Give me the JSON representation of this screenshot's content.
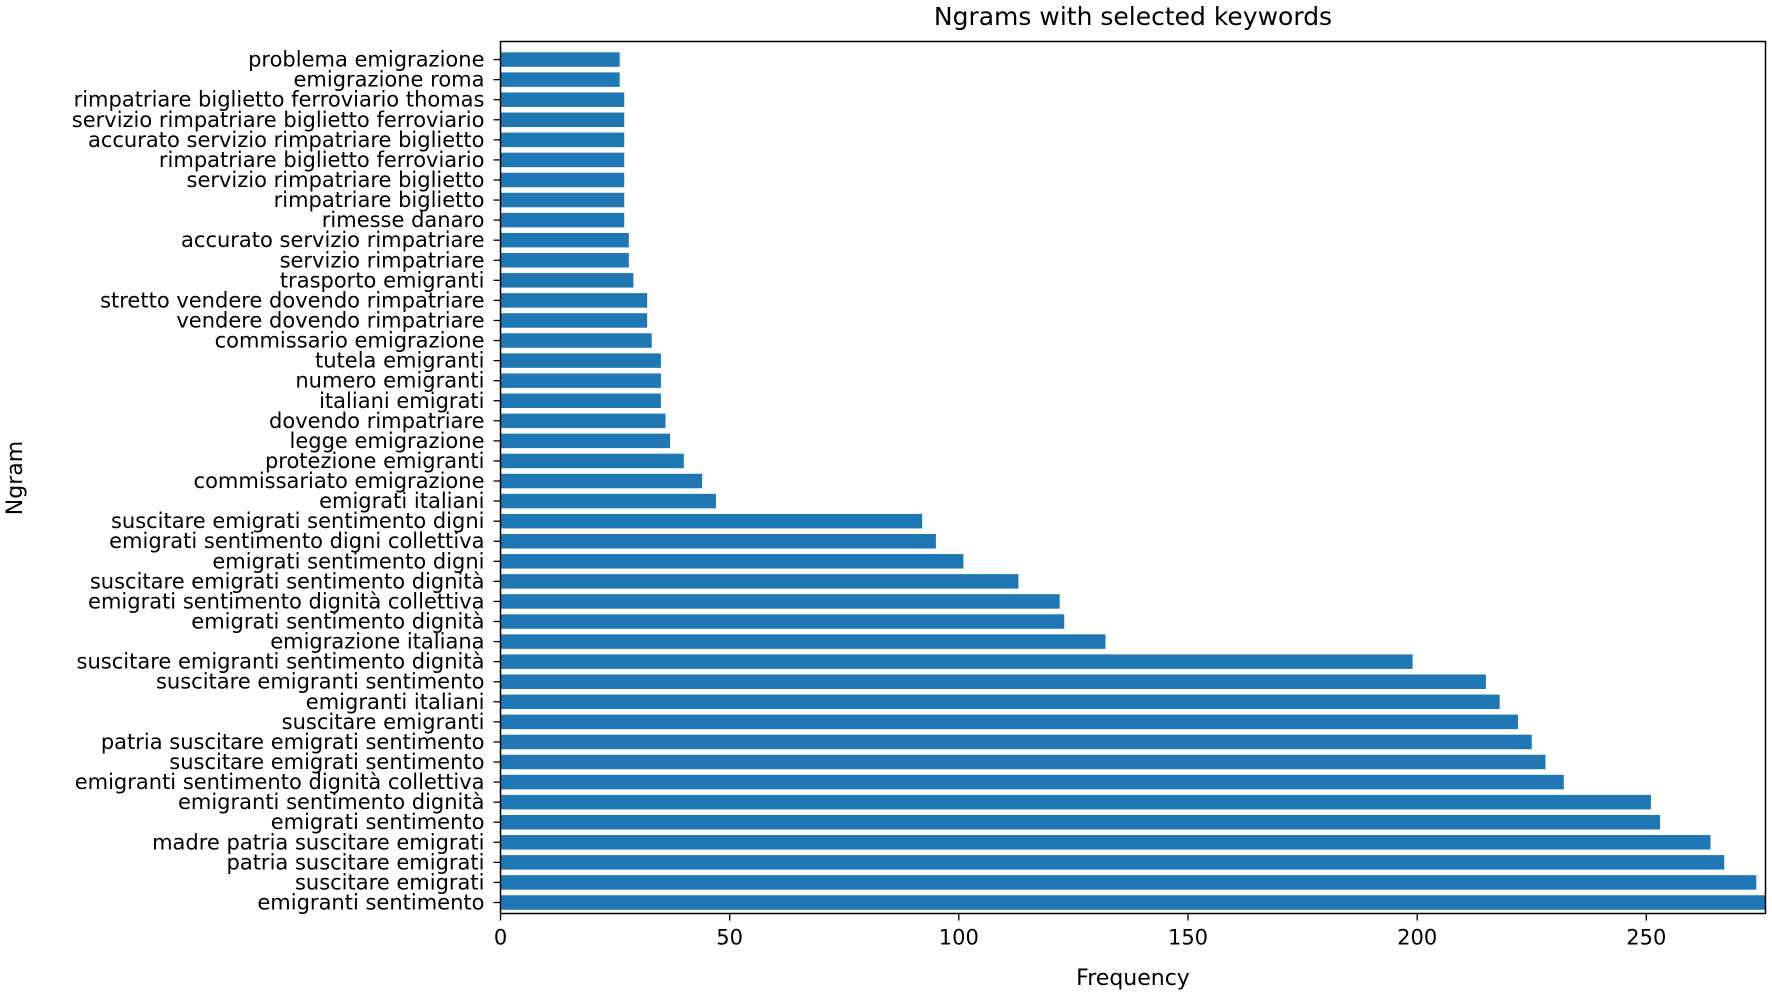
{
  "chart_data": {
    "type": "bar",
    "orientation": "horizontal",
    "title": "Ngrams with selected keywords",
    "xlabel": "Frequency",
    "ylabel": "Ngram",
    "xlim": [
      0,
      276
    ],
    "xticks": [
      0,
      50,
      100,
      150,
      200,
      250
    ],
    "grid": false,
    "bar_color": "#1f77b4",
    "categories": [
      "emigranti sentimento",
      "suscitare emigrati",
      "patria suscitare emigrati",
      "madre patria suscitare emigrati",
      "emigrati sentimento",
      "emigranti sentimento dignità",
      "emigranti sentimento dignità collettiva",
      "suscitare emigrati sentimento",
      "patria suscitare emigrati sentimento",
      "suscitare emigranti",
      "emigranti italiani",
      "suscitare emigranti sentimento",
      "suscitare emigranti sentimento dignità",
      "emigrazione italiana",
      "emigrati sentimento dignità",
      "emigrati sentimento dignità collettiva",
      "suscitare emigrati sentimento dignità",
      "emigrati sentimento digni",
      "emigrati sentimento digni collettiva",
      "suscitare emigrati sentimento digni",
      "emigrati italiani",
      "commissariato emigrazione",
      "protezione emigranti",
      "legge emigrazione",
      "dovendo rimpatriare",
      "italiani emigrati",
      "numero emigranti",
      "tutela emigranti",
      "commissario emigrazione",
      "vendere dovendo rimpatriare",
      "stretto vendere dovendo rimpatriare",
      "trasporto emigranti",
      "servizio rimpatriare",
      "accurato servizio rimpatriare",
      "rimesse danaro",
      "rimpatriare biglietto",
      "servizio rimpatriare biglietto",
      "rimpatriare biglietto ferroviario",
      "accurato servizio rimpatriare biglietto",
      "servizio rimpatriare biglietto ferroviario",
      "rimpatriare biglietto ferroviario thomas",
      "emigrazione roma",
      "problema emigrazione"
    ],
    "values": [
      276,
      274,
      267,
      264,
      253,
      251,
      232,
      228,
      225,
      222,
      218,
      215,
      199,
      132,
      123,
      122,
      113,
      101,
      95,
      92,
      47,
      44,
      40,
      37,
      36,
      35,
      35,
      35,
      33,
      32,
      32,
      29,
      28,
      28,
      27,
      27,
      27,
      27,
      27,
      27,
      27,
      26,
      26
    ]
  }
}
